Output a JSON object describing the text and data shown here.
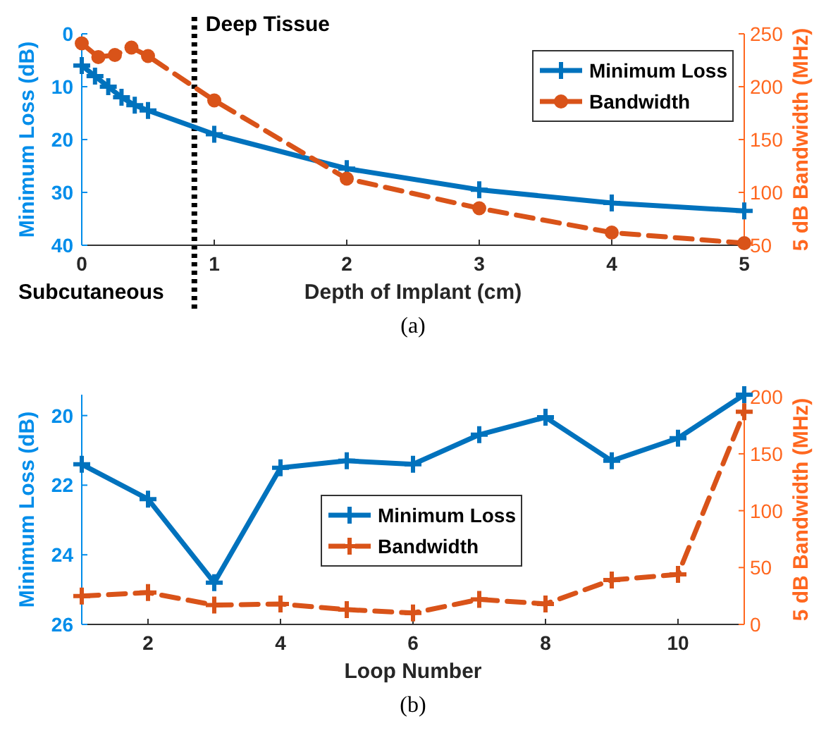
{
  "chart_data": [
    {
      "type": "line",
      "xlabel": "Depth of Implant (cm)",
      "ylabel": "Minimum Loss (dB)",
      "y2label": "5 dB Bandwidth (MHz)",
      "xlim": [
        0,
        5
      ],
      "xticks": [
        0,
        1,
        2,
        3,
        4,
        5
      ],
      "ylim": [
        40,
        0
      ],
      "yticks": [
        0,
        10,
        20,
        30,
        40
      ],
      "y2lim": [
        50,
        250
      ],
      "y2ticks": [
        50,
        100,
        150,
        200,
        250
      ],
      "legend": "top right",
      "grid": false,
      "series": [
        {
          "name": "Minimum Loss",
          "color": "#0072bd",
          "marker": "cross",
          "line_style": "solid",
          "x": [
            0,
            0.1,
            0.2,
            0.3,
            0.4,
            0.5,
            1,
            2,
            3,
            4,
            5
          ],
          "values": [
            6,
            8,
            10,
            12,
            13.5,
            14.5,
            19,
            25.5,
            29.5,
            32,
            33.5
          ]
        },
        {
          "name": "Bandwidth",
          "color": "#d95319",
          "marker": "circle",
          "line_style": "dashed",
          "axis": "y2",
          "x": [
            0,
            0.125,
            0.25,
            0.375,
            0.5,
            1,
            2,
            3,
            4,
            5
          ],
          "values": [
            241,
            228,
            230,
            237,
            229,
            187,
            113,
            85,
            62,
            52
          ]
        }
      ],
      "ref_lines": [
        {
          "axis": "x",
          "value": 0.85,
          "label": "Deep Tissue",
          "color": "#000000",
          "line_style": "dotted"
        }
      ],
      "annotations": [
        "Subcutaneous",
        "(a)"
      ]
    },
    {
      "type": "line",
      "xlabel": "Loop Number",
      "ylabel": "Minimum Loss (dB)",
      "y2label": "5 dB Bandwidth (MHz)",
      "xlim": [
        1,
        11
      ],
      "xticks": [
        2,
        4,
        6,
        8,
        10
      ],
      "ylim": [
        26,
        19.4
      ],
      "yticks": [
        20,
        22,
        24,
        26
      ],
      "y2lim": [
        0,
        202
      ],
      "y2ticks": [
        0,
        50,
        100,
        150,
        200
      ],
      "legend": "center",
      "grid": false,
      "series": [
        {
          "name": "Minimum Loss",
          "color": "#0072bd",
          "marker": "cross",
          "line_style": "solid",
          "x": [
            1,
            2,
            3,
            4,
            5,
            6,
            7,
            8,
            9,
            10,
            11
          ],
          "values": [
            21.4,
            22.4,
            24.8,
            21.5,
            21.3,
            21.4,
            20.55,
            20.05,
            21.3,
            20.65,
            19.4
          ]
        },
        {
          "name": "Bandwidth",
          "color": "#d95319",
          "marker": "cross",
          "line_style": "dashed",
          "axis": "y2",
          "x": [
            1,
            2,
            3,
            4,
            5,
            6,
            7,
            8,
            9,
            10,
            11
          ],
          "values": [
            25,
            28,
            17,
            18,
            13,
            10,
            22,
            18,
            39,
            44,
            187
          ]
        }
      ],
      "annotations": [
        "(b)"
      ]
    }
  ]
}
